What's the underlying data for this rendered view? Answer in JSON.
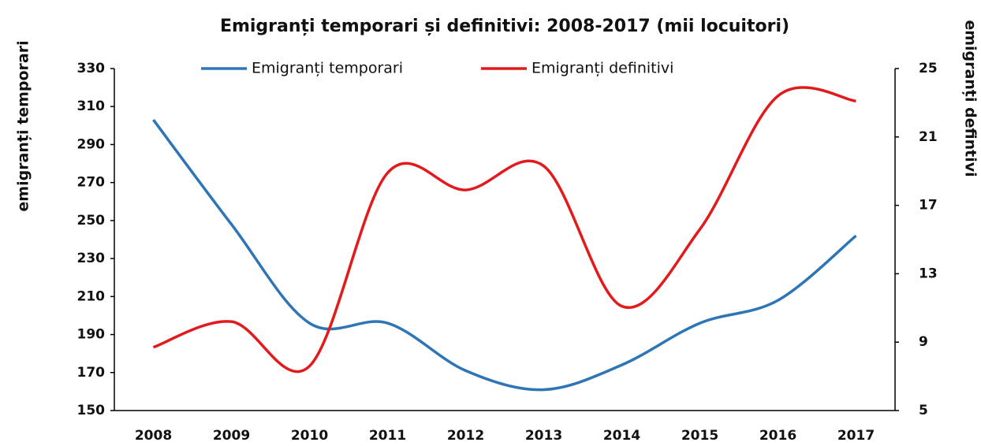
{
  "chart_data": {
    "type": "line",
    "title": "Emigranți temporari și definitivi: 2008-2017 (mii locuitori)",
    "y_label": "emigranți temporari",
    "y2_label": "emigranți defintivi",
    "categories": [
      "2008",
      "2009",
      "2010",
      "2011",
      "2012",
      "2013",
      "2014",
      "2015",
      "2016",
      "2017"
    ],
    "series": [
      {
        "name": "Emigranți temporari",
        "color": "#2e75b6",
        "values": [
          303,
          248,
          196,
          196,
          171,
          161,
          174,
          196,
          208,
          242
        ]
      },
      {
        "name": "Emigranți definitivi",
        "color": "#e31a1c",
        "axis": "y2",
        "values": [
          8.7,
          10.2,
          7.6,
          18.9,
          17.9,
          19.3,
          11.1,
          15.6,
          23.4,
          23.1
        ]
      }
    ],
    "ylim": [
      150,
      330
    ],
    "yticks": [
      150,
      170,
      190,
      210,
      230,
      250,
      270,
      290,
      310,
      330
    ],
    "y2lim": [
      5,
      25
    ],
    "y2ticks": [
      5,
      9,
      13,
      17,
      21,
      25
    ],
    "smooth": true,
    "legend": "top"
  }
}
